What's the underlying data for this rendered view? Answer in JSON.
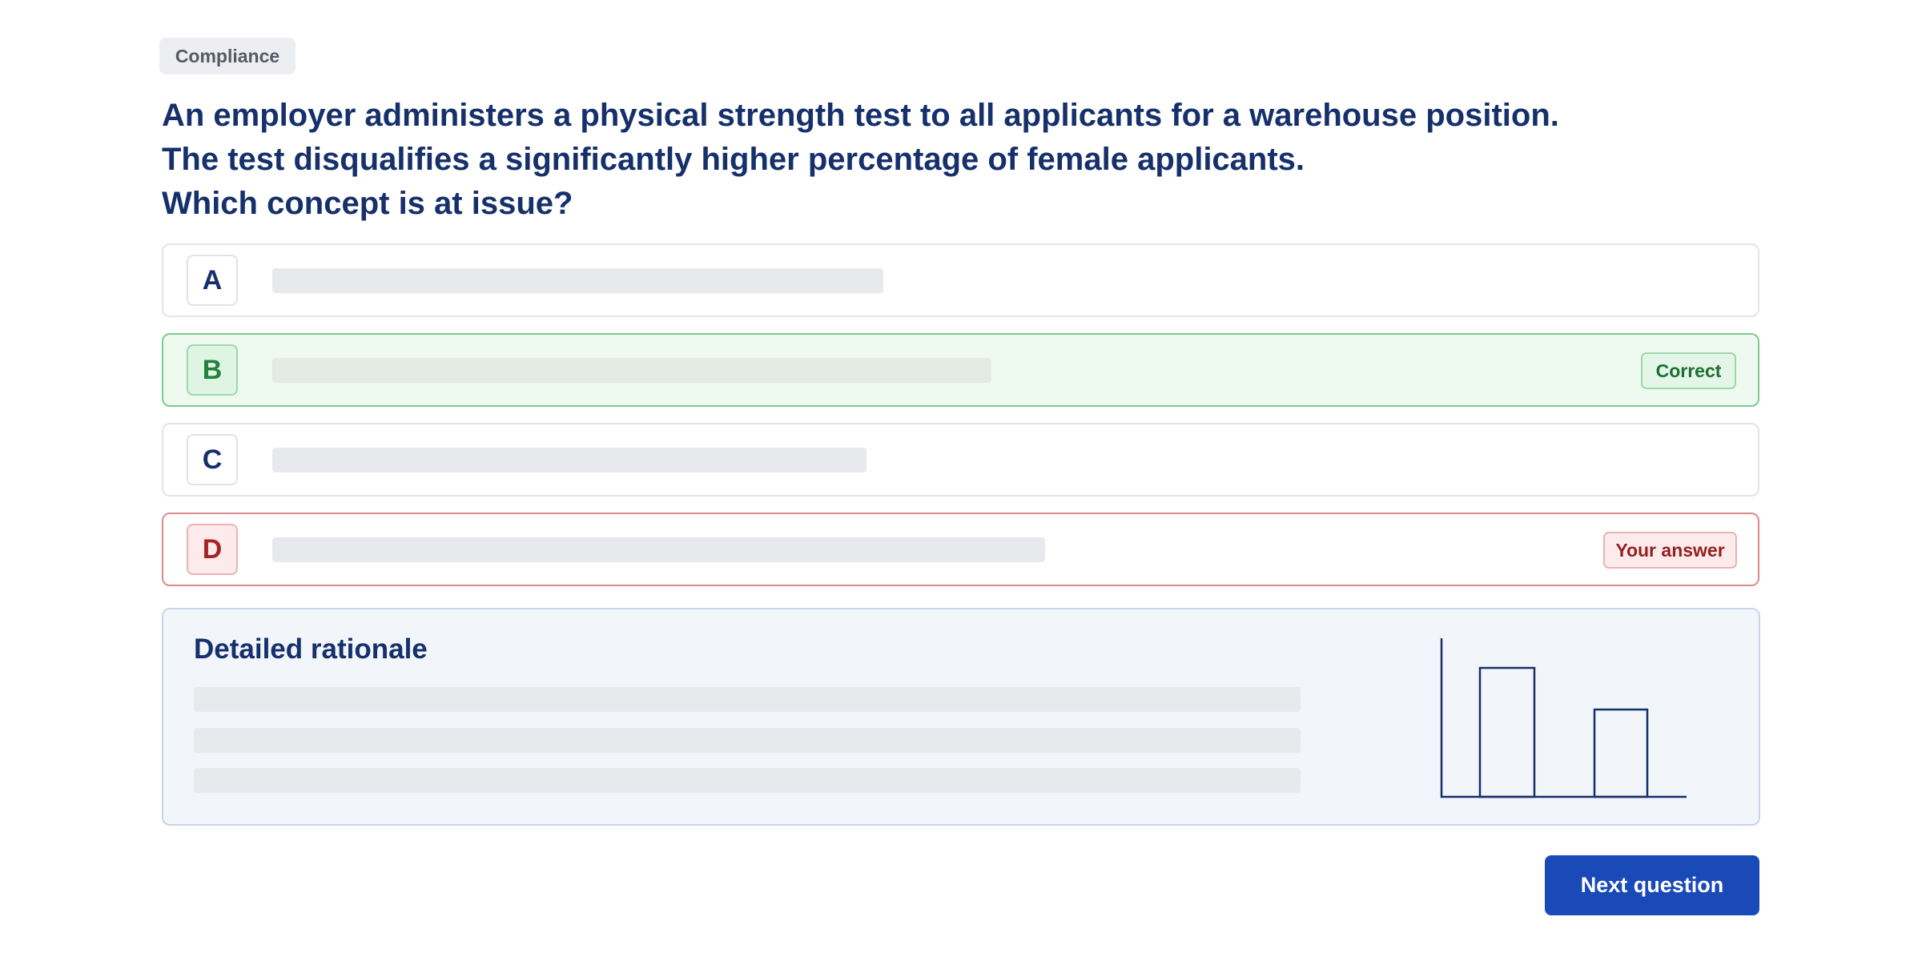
{
  "tag": "Compliance",
  "question": {
    "lines": [
      "An employer administers a physical strength test to all applicants for a warehouse position.",
      "The test disqualifies a significantly higher percentage of female applicants.",
      "Which concept is at issue?"
    ]
  },
  "options": [
    {
      "letter": "A"
    },
    {
      "letter": "B",
      "badge": "Correct"
    },
    {
      "letter": "C"
    },
    {
      "letter": "D",
      "badge": "Your answer"
    }
  ],
  "rationale": {
    "title": "Detailed rationale"
  },
  "button": "Next question"
}
